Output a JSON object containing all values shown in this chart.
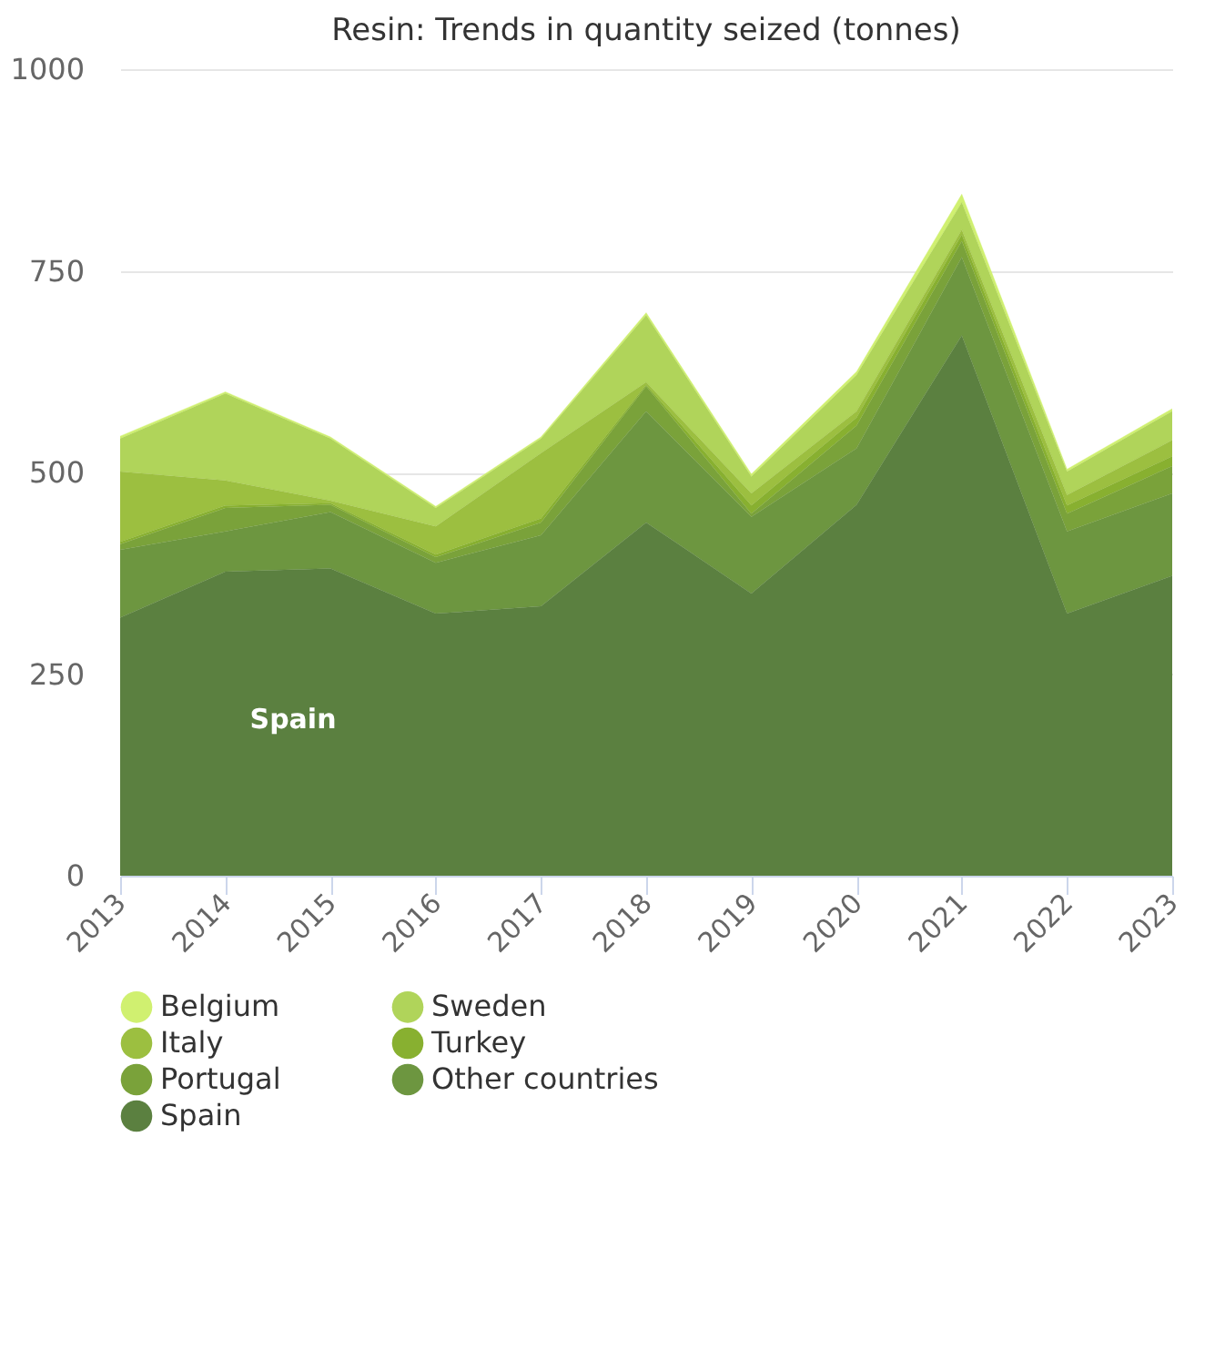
{
  "chart_data": {
    "type": "area",
    "title": "Resin: Trends in quantity seized (tonnes)",
    "stacked": true,
    "x": [
      2013,
      2014,
      2015,
      2016,
      2017,
      2018,
      2019,
      2020,
      2021,
      2022,
      2023
    ],
    "xlim": [
      2013,
      2023
    ],
    "xticks": [
      2013,
      2014,
      2015,
      2016,
      2017,
      2018,
      2019,
      2020,
      2021,
      2022,
      2023
    ],
    "ylim": [
      0,
      1000
    ],
    "yticks": [
      0,
      250,
      500,
      750,
      1000
    ],
    "grid": "y",
    "legend": "bottom",
    "series": [
      {
        "name": "Spain",
        "color": "#5b8040",
        "values": [
          320,
          377,
          381,
          325,
          334,
          438,
          350,
          460,
          670,
          325,
          372
        ]
      },
      {
        "name": "Other countries",
        "color": "#6d9640",
        "values": [
          84,
          50,
          70,
          63,
          88,
          138,
          95,
          70,
          97,
          102,
          102
        ]
      },
      {
        "name": "Portugal",
        "color": "#7aa23a",
        "values": [
          7,
          29,
          9,
          7,
          16,
          31,
          4,
          28,
          20,
          22,
          34
        ]
      },
      {
        "name": "Turkey",
        "color": "#88b030",
        "values": [
          3,
          3,
          2,
          3,
          5,
          2,
          10,
          10,
          8,
          10,
          12
        ]
      },
      {
        "name": "Italy",
        "color": "#9cbf40",
        "values": [
          87,
          31,
          3,
          35,
          81,
          3,
          15,
          8,
          6,
          13,
          20
        ]
      },
      {
        "name": "Sweden",
        "color": "#b0d45a",
        "values": [
          41,
          108,
          77,
          23,
          18,
          83,
          21,
          45,
          34,
          29,
          36
        ]
      },
      {
        "name": "Belgium",
        "color": "#d0f070",
        "values": [
          3,
          2,
          2,
          2,
          2,
          3,
          3,
          4,
          10,
          3,
          3
        ]
      }
    ],
    "annotations": [
      "Spain"
    ]
  }
}
